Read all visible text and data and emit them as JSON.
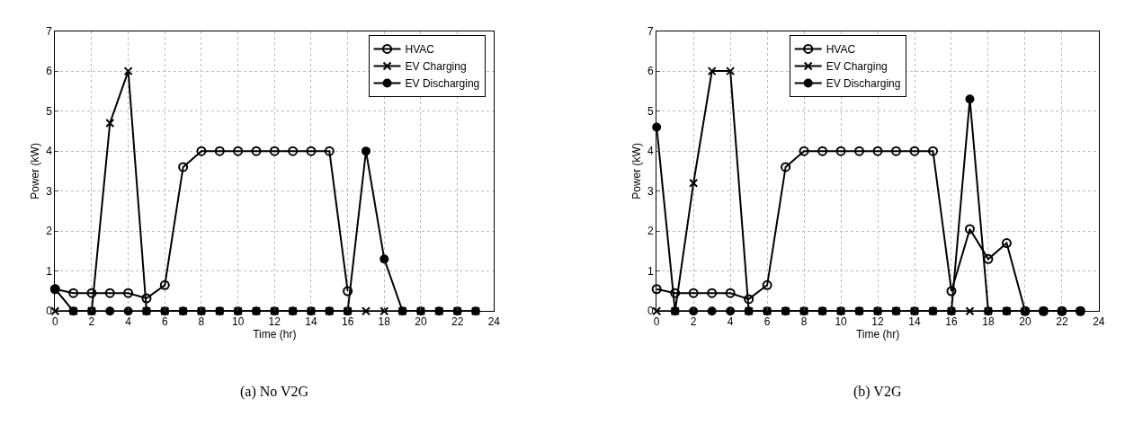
{
  "chart_data": [
    {
      "type": "line",
      "annotations": [
        "(a) No V2G"
      ],
      "xlabel": "Time (hr)",
      "ylabel": "Power (kW)",
      "x": [
        0,
        1,
        2,
        3,
        4,
        5,
        6,
        7,
        8,
        9,
        10,
        11,
        12,
        13,
        14,
        15,
        16,
        17,
        18,
        19,
        20,
        21,
        22,
        23
      ],
      "xlim": [
        0,
        24
      ],
      "xticks": [
        0,
        2,
        4,
        6,
        8,
        10,
        12,
        14,
        16,
        18,
        20,
        22,
        24
      ],
      "ylim": [
        0,
        7
      ],
      "yticks": [
        0,
        1,
        2,
        3,
        4,
        5,
        6,
        7
      ],
      "grid": true,
      "legend": "top right",
      "line_style": "solid",
      "series": [
        {
          "name": "HVAC",
          "color": "#000000",
          "marker": "circle-open",
          "values": [
            0.55,
            0.45,
            0.45,
            0.45,
            0.45,
            0.32,
            0.65,
            3.6,
            4,
            4,
            4,
            4,
            4,
            4,
            4,
            4,
            0.5,
            null,
            null,
            null,
            null,
            null,
            null,
            null
          ]
        },
        {
          "name": "EV Charging",
          "color": "#000000",
          "marker": "cross",
          "values": [
            0,
            0,
            0,
            4.7,
            6,
            0,
            0,
            0,
            0,
            0,
            0,
            0,
            0,
            0,
            0,
            0,
            0,
            0,
            0,
            0,
            0,
            0,
            0,
            0
          ]
        },
        {
          "name": "EV Discharging",
          "color": "#000000",
          "marker": "circle",
          "values": [
            0.55,
            0,
            0,
            0,
            0,
            0,
            0,
            0,
            0,
            0,
            0,
            0,
            0,
            0,
            0,
            0,
            0,
            4,
            1.3,
            0,
            0,
            0,
            0,
            0
          ]
        }
      ]
    },
    {
      "type": "line",
      "annotations": [
        "(b) V2G"
      ],
      "xlabel": "Time (hr)",
      "ylabel": "Power (kW)",
      "x": [
        0,
        1,
        2,
        3,
        4,
        5,
        6,
        7,
        8,
        9,
        10,
        11,
        12,
        13,
        14,
        15,
        16,
        17,
        18,
        19,
        20,
        21,
        22,
        23
      ],
      "xlim": [
        0,
        24
      ],
      "xticks": [
        0,
        2,
        4,
        6,
        8,
        10,
        12,
        14,
        16,
        18,
        20,
        22,
        24
      ],
      "ylim": [
        0,
        7
      ],
      "yticks": [
        0,
        1,
        2,
        3,
        4,
        5,
        6,
        7
      ],
      "grid": true,
      "legend": "top",
      "line_style": "solid",
      "series": [
        {
          "name": "HVAC",
          "color": "#000000",
          "marker": "circle-open",
          "values": [
            0.55,
            0.45,
            0.45,
            0.45,
            0.45,
            0.3,
            0.65,
            3.6,
            4,
            4,
            4,
            4,
            4,
            4,
            4,
            4,
            0.5,
            2.05,
            1.3,
            1.7,
            0,
            0,
            0,
            0
          ]
        },
        {
          "name": "EV Charging",
          "color": "#000000",
          "marker": "cross",
          "values": [
            0,
            0,
            3.2,
            6,
            6,
            0,
            0,
            0,
            0,
            0,
            0,
            0,
            0,
            0,
            0,
            0,
            0,
            0,
            0,
            0,
            0,
            0,
            0,
            0
          ]
        },
        {
          "name": "EV Discharging",
          "color": "#000000",
          "marker": "circle",
          "values": [
            4.6,
            0,
            0,
            0,
            0,
            0,
            0,
            0,
            0,
            0,
            0,
            0,
            0,
            0,
            0,
            0,
            0,
            5.3,
            0,
            0,
            0,
            0,
            0,
            0
          ]
        }
      ]
    }
  ]
}
